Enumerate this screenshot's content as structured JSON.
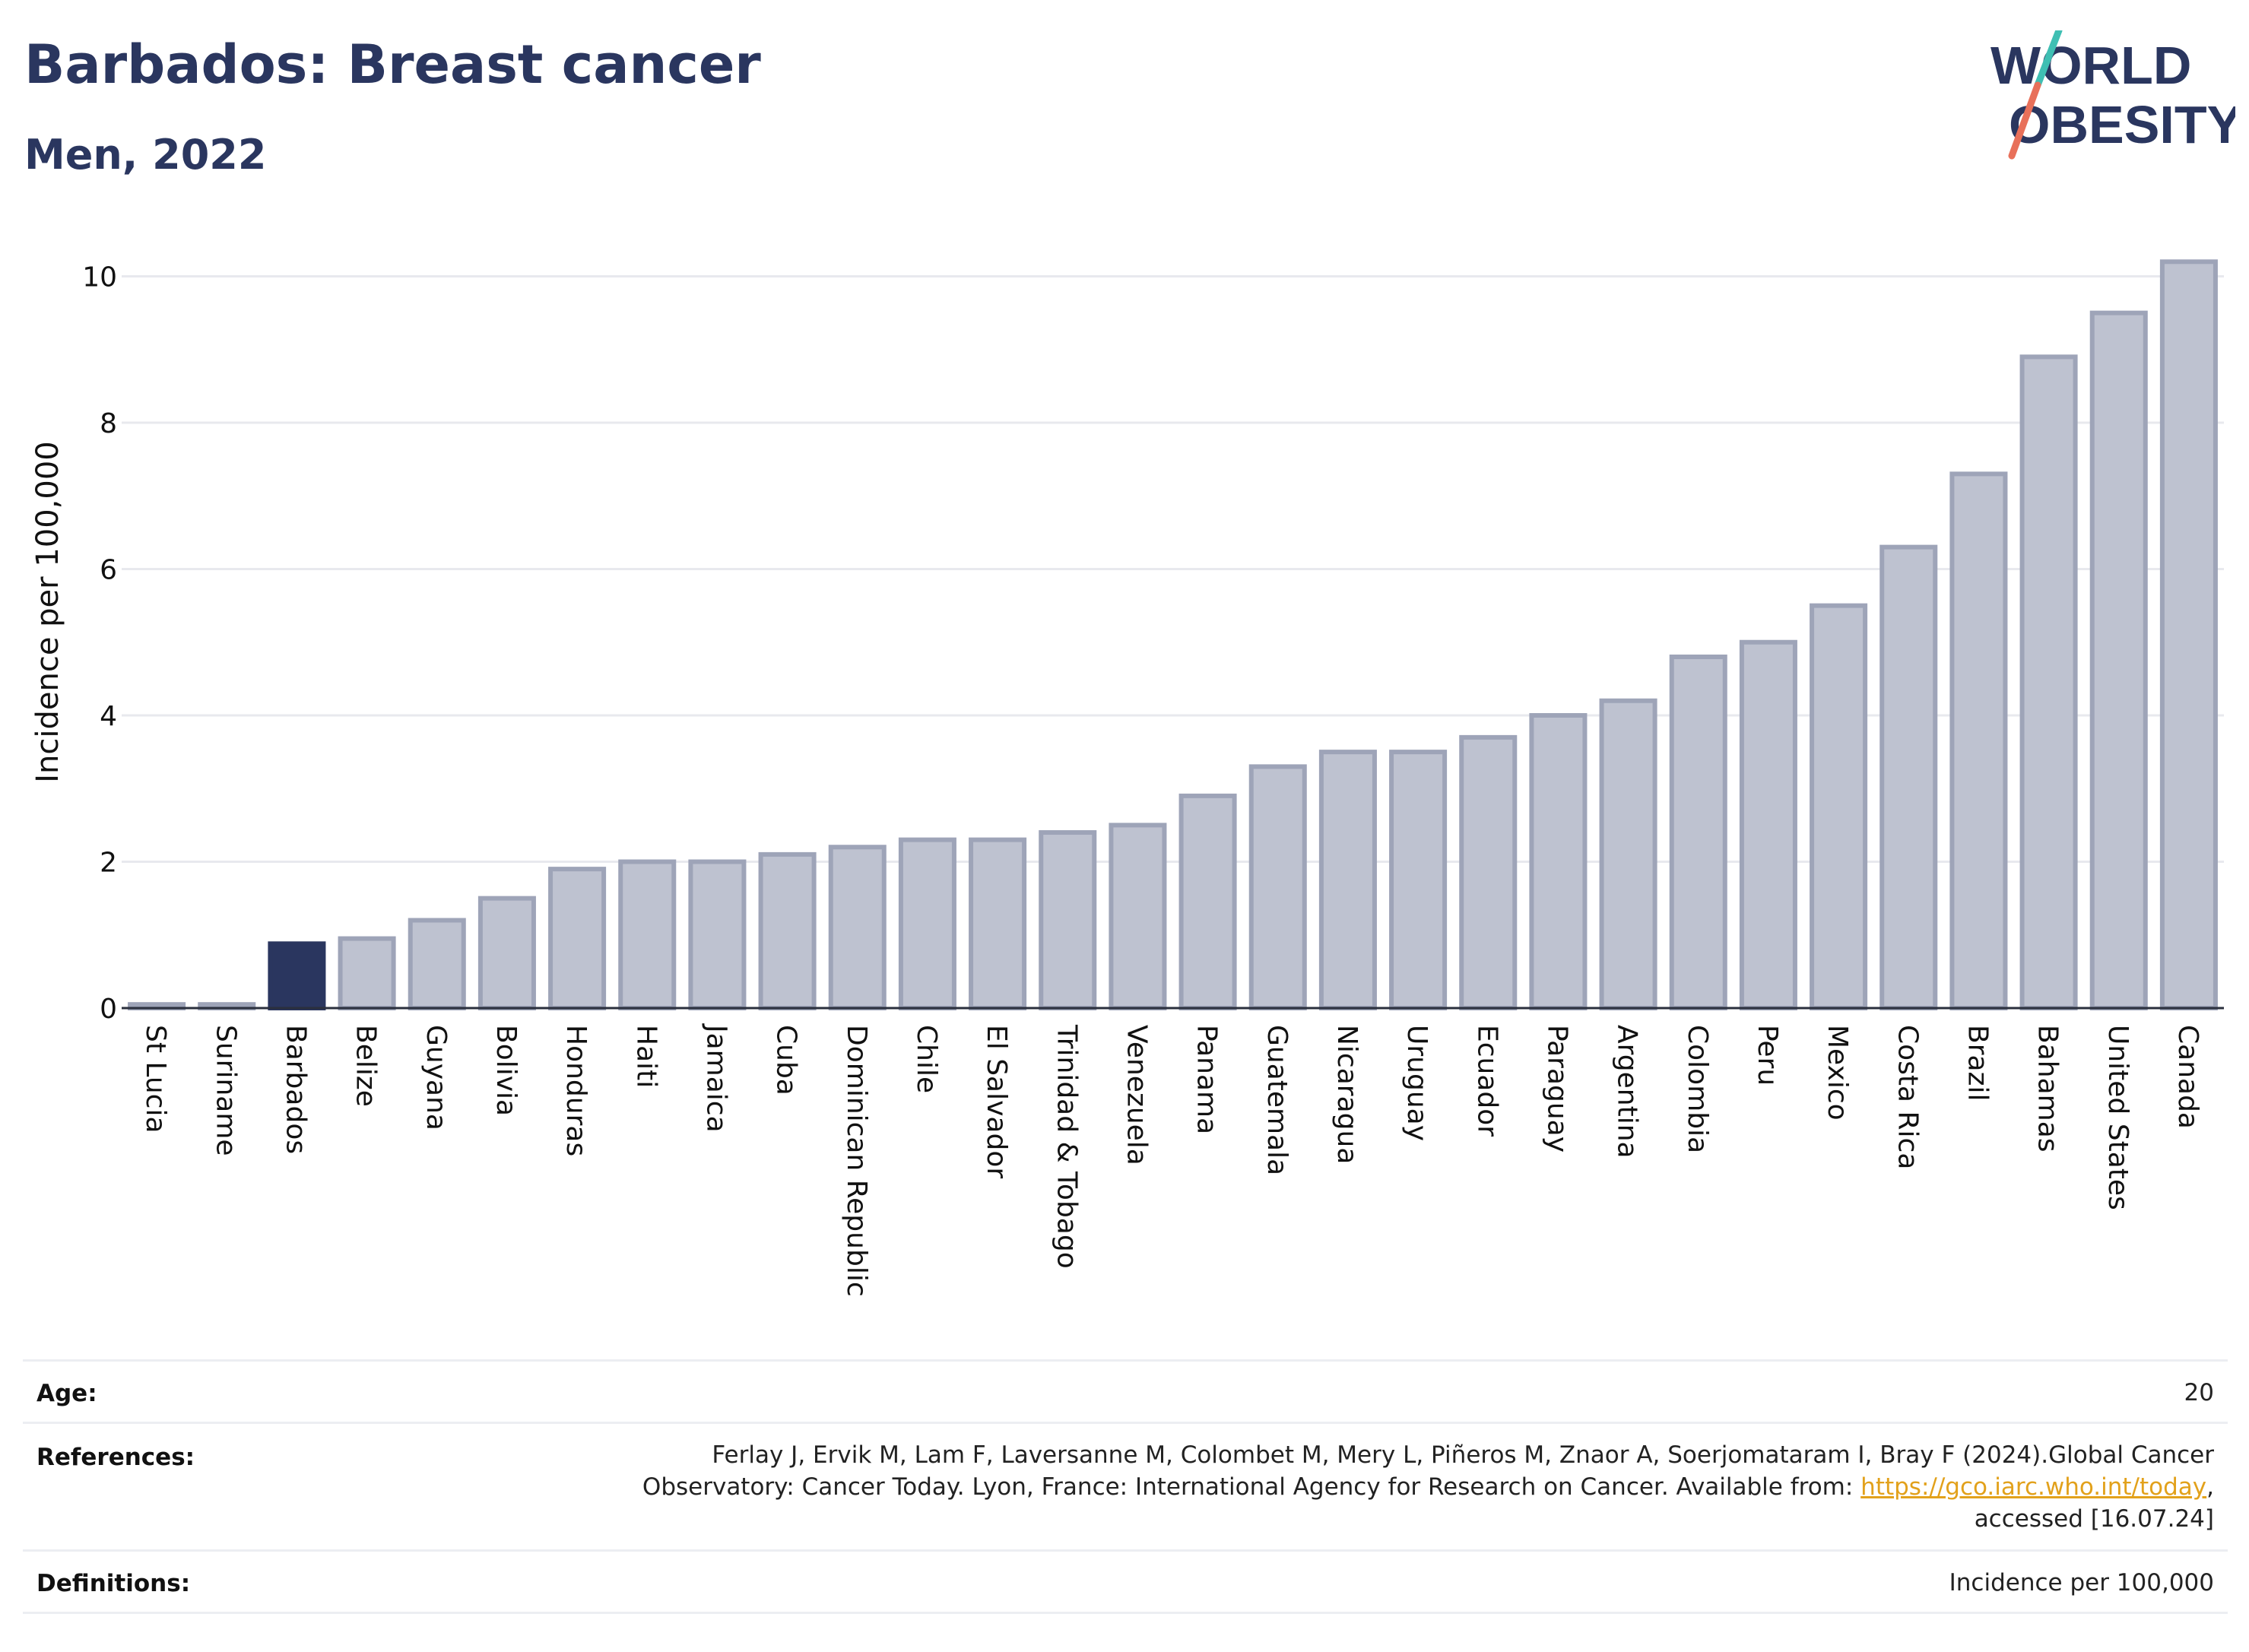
{
  "title": "Barbados: Breast cancer",
  "subtitle": "Men, 2022",
  "logo": {
    "line1": "WORLD",
    "line2": "OBESITY",
    "slash_color_top": "#3fbfb3",
    "slash_color_bottom": "#e8705a"
  },
  "colors": {
    "highlight": "#2a365f",
    "bar": "#bec2d0",
    "bar_border": "#9ea4b8",
    "link": "#e2a11b",
    "grid": "#e8e9ee"
  },
  "chart_data": {
    "type": "bar",
    "ylabel": "Incidence per 100,000",
    "ylim": [
      0,
      10.4
    ],
    "yticks": [
      0,
      2,
      4,
      6,
      8,
      10
    ],
    "highlight": "Barbados",
    "categories": [
      "St Lucia",
      "Suriname",
      "Barbados",
      "Belize",
      "Guyana",
      "Bolivia",
      "Honduras",
      "Haiti",
      "Jamaica",
      "Cuba",
      "Dominican Republic",
      "Chile",
      "El Salvador",
      "Trinidad & Tobago",
      "Venezuela",
      "Panama",
      "Guatemala",
      "Nicaragua",
      "Uruguay",
      "Ecuador",
      "Paraguay",
      "Argentina",
      "Colombia",
      "Peru",
      "Mexico",
      "Costa Rica",
      "Brazil",
      "Bahamas",
      "United States",
      "Canada"
    ],
    "values": [
      0.05,
      0.05,
      0.88,
      0.95,
      1.2,
      1.5,
      1.9,
      2.0,
      2.0,
      2.1,
      2.2,
      2.3,
      2.3,
      2.4,
      2.5,
      2.9,
      3.3,
      3.5,
      3.5,
      3.7,
      4.0,
      4.2,
      4.8,
      5.0,
      5.5,
      6.3,
      7.3,
      8.9,
      9.5,
      10.2
    ]
  },
  "meta": {
    "age_label": "Age:",
    "age_value": "20",
    "references_label": "References:",
    "references_line1": "Ferlay J, Ervik M, Lam F, Laversanne M, Colombet M, Mery L, Piñeros M, Znaor A, Soerjomataram I, Bray F (2024).Global Cancer",
    "references_line2_pre": "Observatory: Cancer Today. Lyon, France: International Agency for Research on Cancer. Available from: ",
    "references_link": "https://gco.iarc.who.int/today",
    "references_line2_post": ",",
    "references_line3": "accessed [16.07.24]",
    "definitions_label": "Definitions:",
    "definitions_value": "Incidence per 100,000"
  }
}
